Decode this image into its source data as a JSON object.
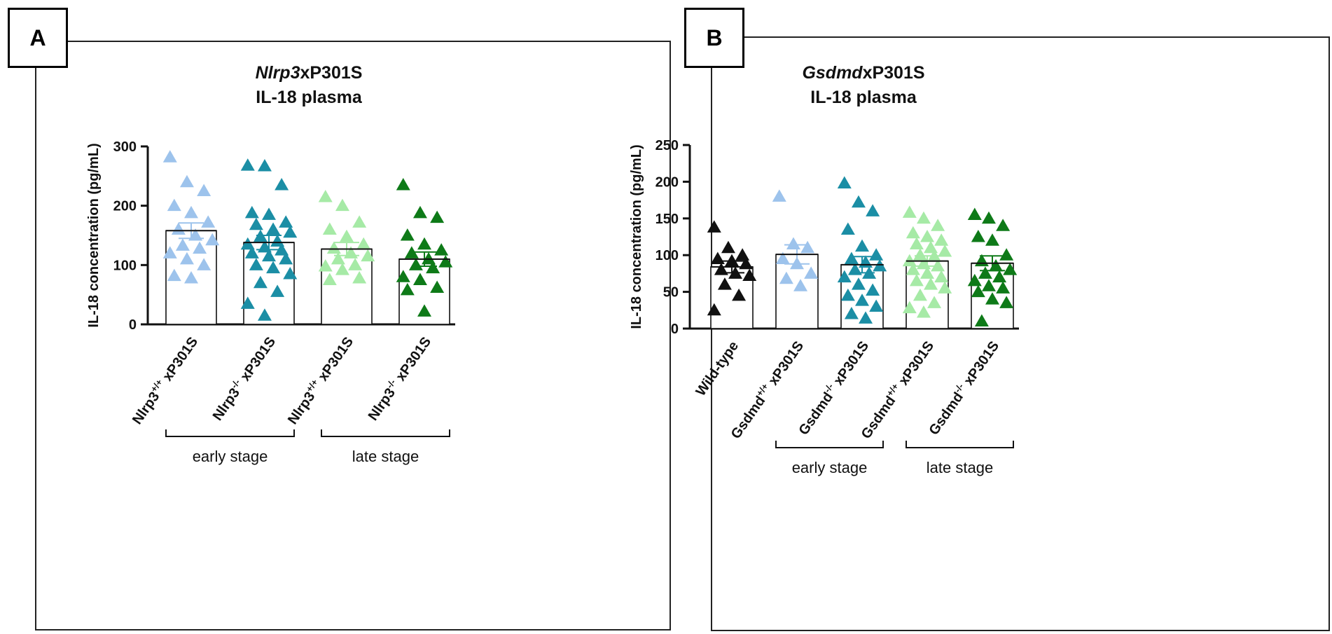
{
  "chart_data": [
    {
      "type": "bar",
      "panel_label": "A",
      "title_italic": "Nlrp3",
      "title_rest": "xP301S",
      "subtitle": "IL-18 plasma",
      "ylabel": "IL-18 concentration (pg/mL)",
      "ylim": [
        0,
        300
      ],
      "yticks": [
        0,
        100,
        200,
        300
      ],
      "categories": [
        {
          "gene": "Nlrp3",
          "sup": "+/+",
          "suffix": " xP301S"
        },
        {
          "gene": "Nlrp3",
          "sup": "-/-",
          "suffix": " xP301S"
        },
        {
          "gene": "Nlrp3",
          "sup": "+/+",
          "suffix": " xP301S"
        },
        {
          "gene": "Nlrp3",
          "sup": "-/-",
          "suffix": " xP301S"
        }
      ],
      "groups": [
        {
          "label": "early stage",
          "from": 0,
          "to": 1
        },
        {
          "label": "late stage",
          "from": 2,
          "to": 3
        }
      ],
      "series": [
        {
          "name": "Nlrp3+/+ xP301S early",
          "color": "#9dc3ec",
          "mean": 158,
          "sem": 13,
          "points": [
            282,
            240,
            225,
            200,
            188,
            172,
            160,
            150,
            142,
            133,
            128,
            120,
            110,
            100,
            82,
            78
          ]
        },
        {
          "name": "Nlrp3-/- xP301S early",
          "color": "#1b8ea5",
          "mean": 138,
          "sem": 12,
          "points": [
            268,
            267,
            235,
            188,
            185,
            172,
            168,
            160,
            155,
            148,
            140,
            135,
            130,
            125,
            120,
            115,
            110,
            100,
            95,
            85,
            70,
            55,
            35,
            15
          ]
        },
        {
          "name": "Nlrp3+/+ xP301S late",
          "color": "#a6eaa6",
          "mean": 127,
          "sem": 11,
          "points": [
            215,
            200,
            172,
            160,
            148,
            135,
            128,
            120,
            115,
            110,
            100,
            98,
            92,
            78,
            75
          ]
        },
        {
          "name": "Nlrp3-/- xP301S late",
          "color": "#0e7a18",
          "mean": 110,
          "sem": 12,
          "points": [
            235,
            188,
            180,
            150,
            135,
            125,
            120,
            110,
            105,
            100,
            95,
            80,
            75,
            62,
            58,
            22
          ]
        }
      ]
    },
    {
      "type": "bar",
      "panel_label": "B",
      "title_italic": "Gsdmd",
      "title_rest": "xP301S",
      "subtitle": "IL-18 plasma",
      "ylabel": "IL-18 concentration (pg/mL)",
      "ylim": [
        0,
        250
      ],
      "yticks": [
        0,
        50,
        100,
        150,
        200,
        250
      ],
      "categories": [
        {
          "gene": "Wild-type",
          "sup": "",
          "suffix": ""
        },
        {
          "gene": "Gsdmd",
          "sup": "+/+",
          "suffix": " xP301S"
        },
        {
          "gene": "Gsdmd",
          "sup": "-/-",
          "suffix": " xP301S"
        },
        {
          "gene": "Gsdmd",
          "sup": "+/+",
          "suffix": " xP301S"
        },
        {
          "gene": "Gsdmd",
          "sup": "-/-",
          "suffix": " xP301S"
        }
      ],
      "groups": [
        {
          "label": "early stage",
          "from": 1,
          "to": 2
        },
        {
          "label": "late stage",
          "from": 3,
          "to": 4
        }
      ],
      "series": [
        {
          "name": "Wild-type",
          "color": "#111111",
          "mean": 84,
          "sem": 8,
          "points": [
            138,
            110,
            100,
            95,
            92,
            88,
            80,
            75,
            72,
            60,
            45,
            25
          ]
        },
        {
          "name": "Gsdmd+/+ xP301S early",
          "color": "#9dc3ec",
          "mean": 101,
          "sem": 13,
          "points": [
            180,
            115,
            110,
            95,
            88,
            75,
            68,
            58
          ]
        },
        {
          "name": "Gsdmd-/- xP301S early",
          "color": "#1b8ea5",
          "mean": 87,
          "sem": 11,
          "points": [
            198,
            172,
            160,
            135,
            112,
            100,
            95,
            90,
            85,
            80,
            75,
            70,
            60,
            52,
            45,
            38,
            30,
            20,
            14
          ]
        },
        {
          "name": "Gsdmd+/+ xP301S late",
          "color": "#a6eaa6",
          "mean": 92,
          "sem": 7,
          "points": [
            158,
            150,
            140,
            130,
            125,
            120,
            115,
            110,
            105,
            100,
            98,
            92,
            88,
            85,
            80,
            75,
            70,
            65,
            60,
            55,
            45,
            35,
            28,
            22
          ]
        },
        {
          "name": "Gsdmd-/- xP301S late",
          "color": "#0e7a18",
          "mean": 89,
          "sem": 10,
          "points": [
            155,
            150,
            140,
            125,
            120,
            100,
            92,
            85,
            80,
            75,
            70,
            65,
            58,
            55,
            50,
            40,
            35,
            10
          ]
        }
      ]
    }
  ]
}
